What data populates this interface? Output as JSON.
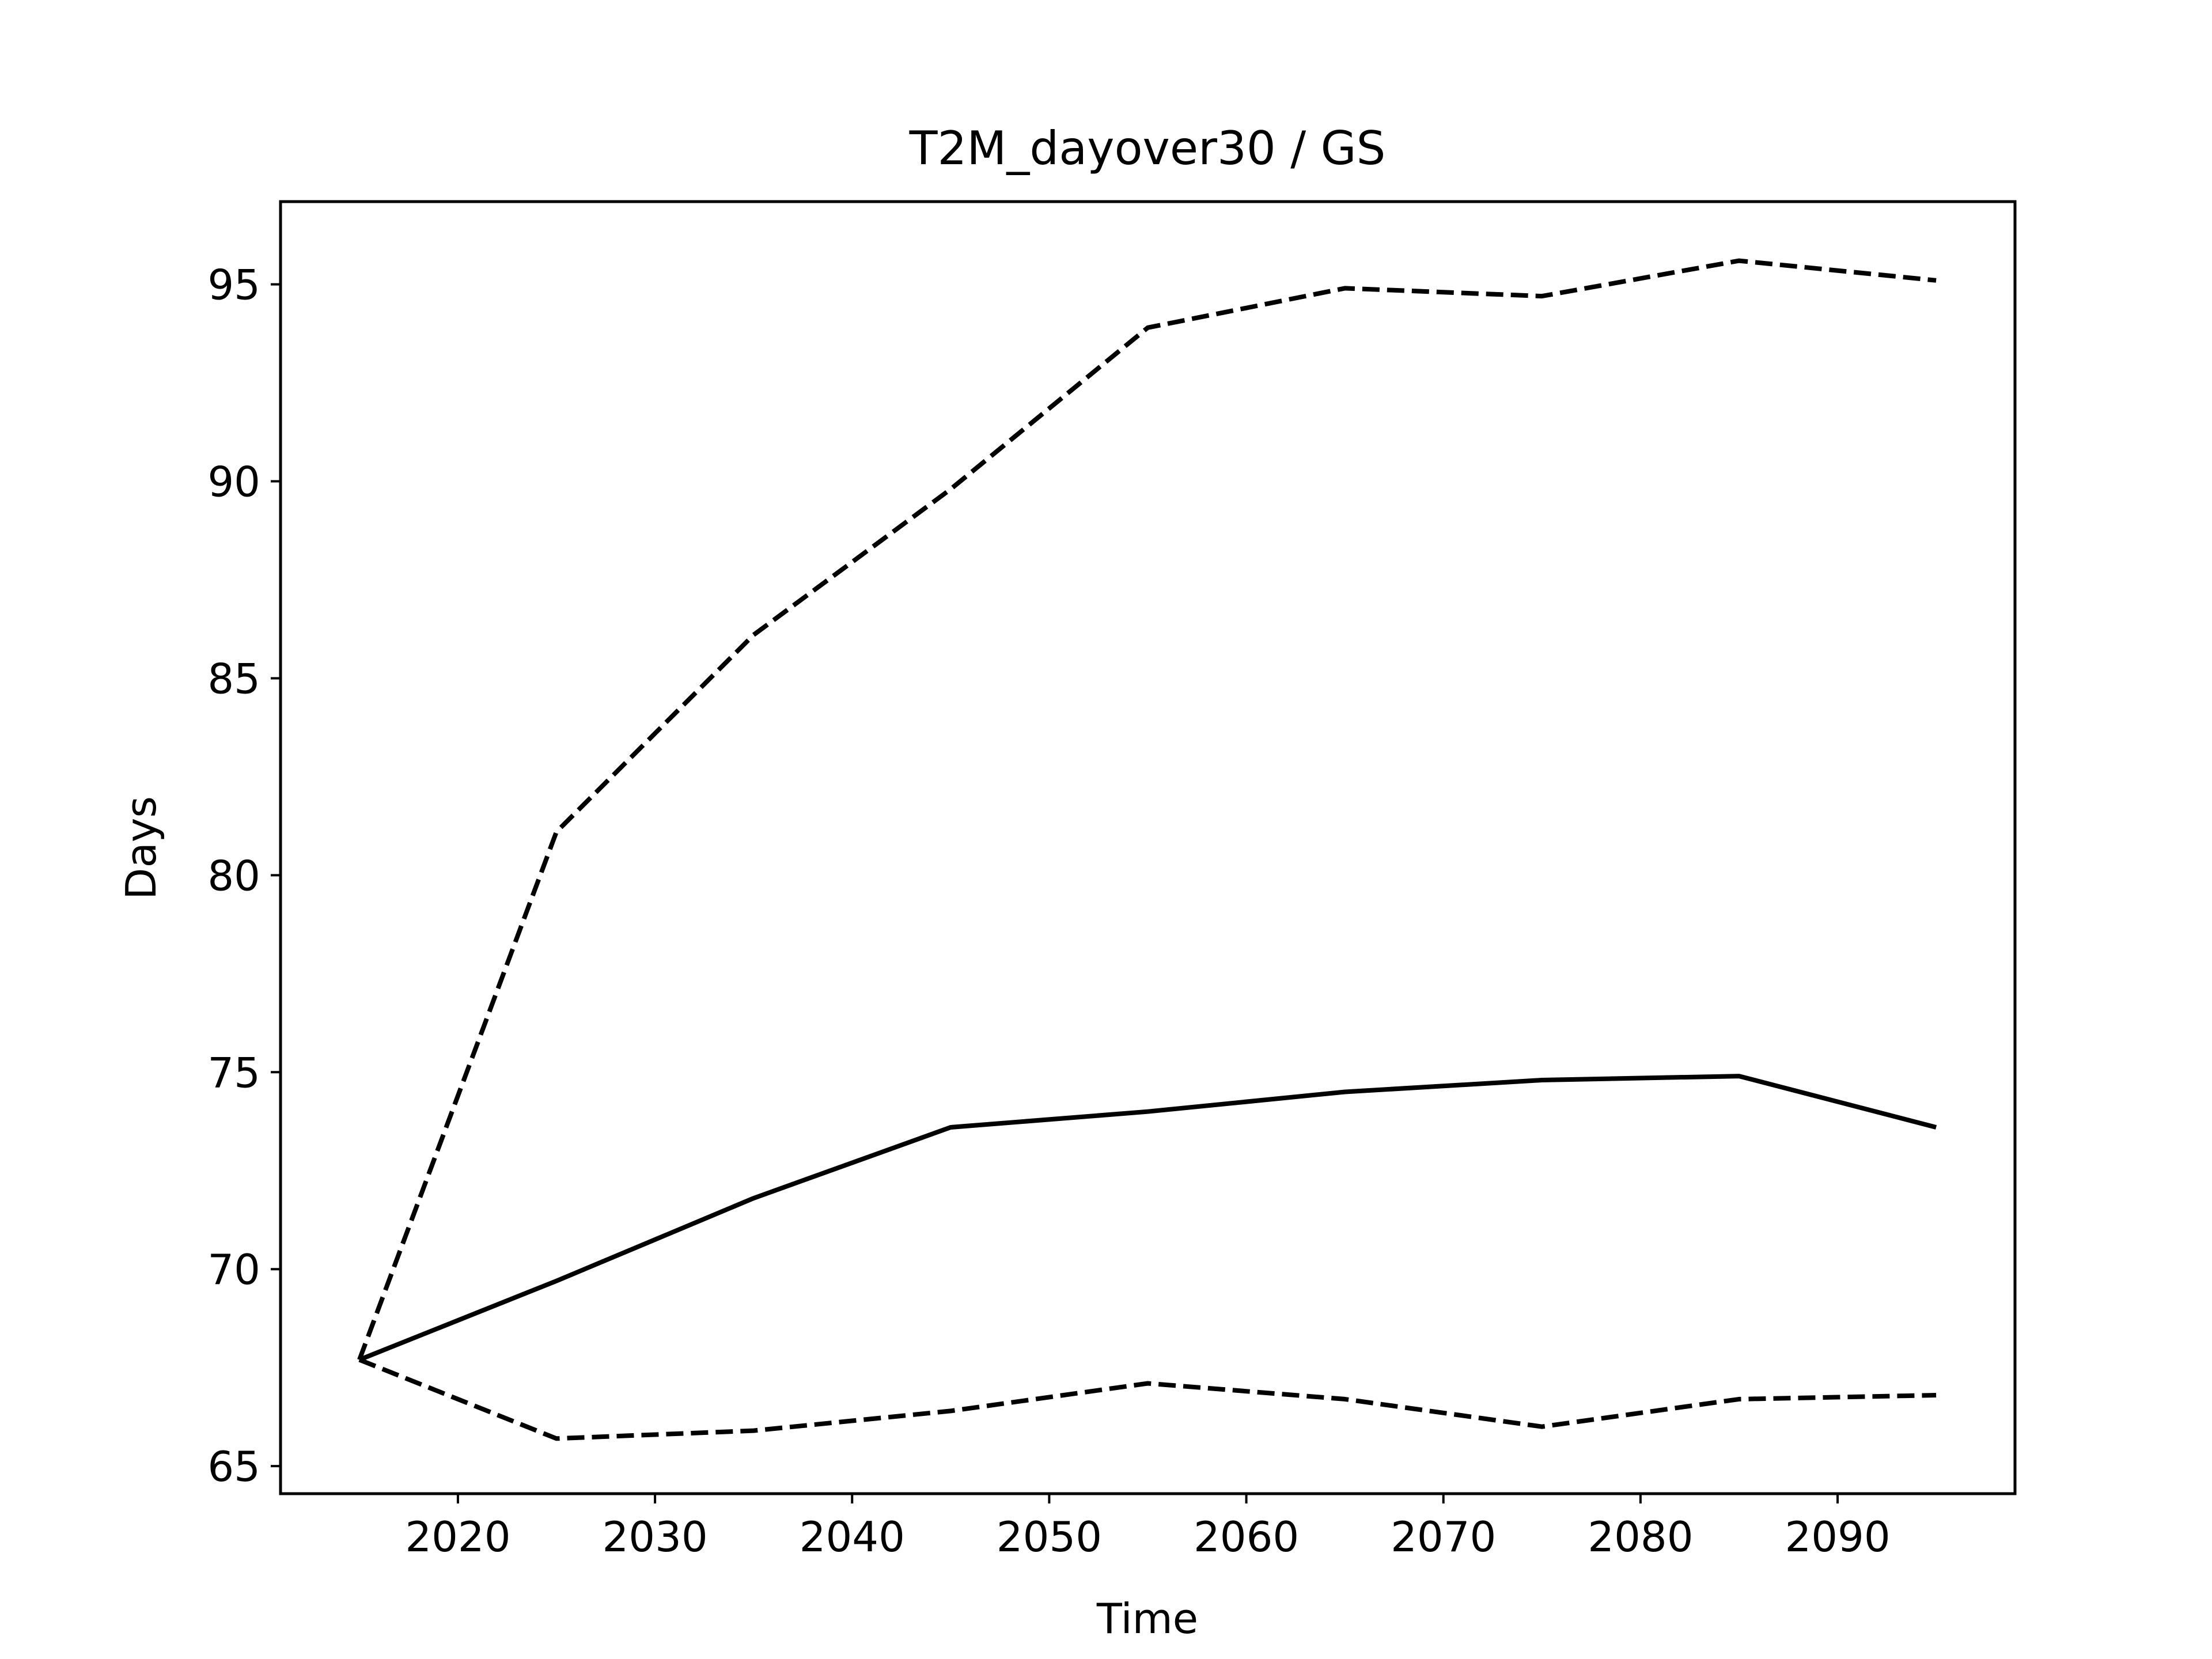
{
  "chart_data": {
    "type": "line",
    "title": "T2M_dayover30 / GS",
    "xlabel": "Time",
    "ylabel": "Days",
    "xlim": [
      2011,
      2099
    ],
    "ylim": [
      64.3,
      97.1
    ],
    "x_ticks": [
      2020,
      2030,
      2040,
      2050,
      2060,
      2070,
      2080,
      2090
    ],
    "y_ticks": [
      65,
      70,
      75,
      80,
      85,
      90,
      95
    ],
    "x_tick_labels": [
      "2020",
      "2030",
      "2040",
      "2050",
      "2060",
      "2070",
      "2080",
      "2090"
    ],
    "y_tick_labels": [
      "65",
      "70",
      "75",
      "80",
      "85",
      "90",
      "95"
    ],
    "grid": false,
    "legend": false,
    "x": [
      2015,
      2025,
      2035,
      2045,
      2055,
      2065,
      2075,
      2085,
      2095
    ],
    "series": [
      {
        "style": "dashed",
        "color": "#000000",
        "values": [
          67.7,
          81.1,
          86.1,
          89.8,
          93.9,
          94.9,
          94.7,
          95.6,
          95.1
        ]
      },
      {
        "style": "solid",
        "color": "#000000",
        "values": [
          67.7,
          69.7,
          71.8,
          73.6,
          74.0,
          74.5,
          74.8,
          74.9,
          73.6
        ]
      },
      {
        "style": "dashed",
        "color": "#000000",
        "values": [
          67.7,
          65.7,
          65.9,
          66.4,
          67.1,
          66.7,
          66.0,
          66.7,
          66.8
        ]
      }
    ]
  }
}
